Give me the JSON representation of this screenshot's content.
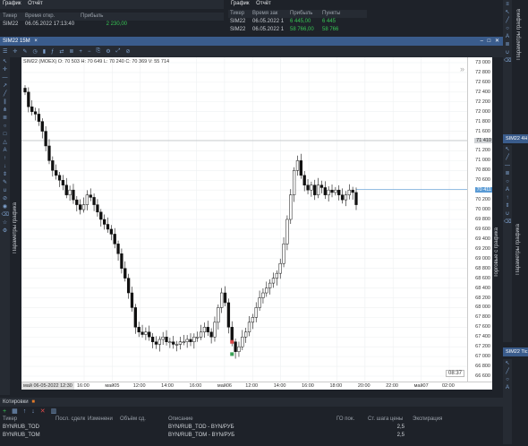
{
  "top_left": {
    "tabs": [
      "График",
      "Отчёт"
    ],
    "columns": [
      "Тикер",
      "Время откр.",
      "Прибыль"
    ],
    "row": {
      "ticker": "SIM22",
      "time": "06.05.2022 17:13:40",
      "profit": "2 230,00"
    }
  },
  "top_right": {
    "tabs": [
      "График",
      "Отчёт"
    ],
    "columns": [
      "Тикер",
      "Время зак",
      "Прибыль",
      "Пункты"
    ],
    "rows": [
      {
        "ticker": "SIM22",
        "time": "06.05.2022 1",
        "profit": "6 445,00",
        "points": "6 445"
      },
      {
        "ticker": "SIM22",
        "time": "06.05.2022 1",
        "profit": "58 766,00",
        "points": "58 766"
      }
    ]
  },
  "chart_window": {
    "title": "SIM22 15M",
    "close_glyph": "×",
    "ohlc": "SIM22 (MOEX)  O: 70 503  H: 70 649  L: 70 240  C: 70 369  V: 55 714",
    "timer": "08:37",
    "date_label": "май 06-05-2022 12:30"
  },
  "side_labels": {
    "left": "Параметры графика",
    "right_top": "Параметры графика",
    "right_mid": "Торговые с графика",
    "right_far": "Параметры графика"
  },
  "right_peek": {
    "title1": "SIM22 4H",
    "title2": "SIM22 Tic"
  },
  "bottom_panel": {
    "title": "Котировки",
    "columns": [
      "Тикер",
      "Посл. сделк",
      "Изменени",
      "Объём сд.",
      "Описание",
      "ГО пок.",
      "Ст. шага цены",
      "Экспирация"
    ],
    "rows": [
      {
        "ticker": "BYNRUB_TOD",
        "desc": "BYN/RUB_TOD - BYN/РУБ",
        "step": "2,5"
      },
      {
        "ticker": "BYNRUB_TOM",
        "desc": "BYN/RUB_TOM - BYN/РУБ",
        "step": "2,5"
      }
    ]
  },
  "chart_data": {
    "type": "candlestick",
    "title": "SIM22 (MOEX)",
    "xlabel": "",
    "ylabel": "",
    "ylim": [
      66600,
      73000
    ],
    "y_ticks": [
      "73 000",
      "72 800",
      "72 600",
      "72 400",
      "72 200",
      "72 000",
      "71 800",
      "71 600",
      "71 400",
      "71 200",
      "71 000",
      "70 800",
      "70 600",
      "70 400",
      "70 200",
      "70 000",
      "69 800",
      "69 600",
      "69 400",
      "69 200",
      "69 000",
      "68 800",
      "68 600",
      "68 400",
      "68 200",
      "68 000",
      "67 800",
      "67 600",
      "67 400",
      "67 200",
      "67 000",
      "66 800",
      "66 600"
    ],
    "highlight_labels": [
      "71 410",
      "70 411"
    ],
    "x_ticks": [
      "16:00",
      "май05",
      "12:00",
      "14:00",
      "16:00",
      "май06",
      "12:00",
      "14:00",
      "16:00",
      "18:00",
      "20:00",
      "22:00",
      "май07",
      "02:00"
    ],
    "closes": [
      72400,
      72100,
      72000,
      71950,
      71800,
      71600,
      71300,
      71000,
      70800,
      70700,
      70600,
      70500,
      70300,
      70400,
      70200,
      70100,
      70000,
      70100,
      70300,
      70250,
      70100,
      69950,
      69800,
      69700,
      69600,
      69500,
      69300,
      69100,
      68800,
      68600,
      68300,
      68000,
      67600,
      67500,
      67450,
      67500,
      67400,
      67300,
      67250,
      67350,
      67400,
      67300,
      67300,
      67250,
      67250,
      67300,
      67300,
      67350,
      67300,
      67400,
      67400,
      67500,
      67600,
      67500,
      67400,
      67700,
      68000,
      68300,
      68100,
      67600,
      67300,
      67100,
      67200,
      67400,
      67500,
      67700,
      67800,
      68000,
      68200,
      68300,
      68400,
      68500,
      68600,
      68700,
      68900,
      69300,
      69800,
      70300,
      70800,
      71000,
      70700,
      70500,
      70400,
      70500,
      70300,
      70500,
      70450,
      70300,
      70400,
      70350,
      70400,
      70300,
      70200,
      70300,
      70400,
      70350,
      70100
    ]
  },
  "colors": {
    "accent_title": "#3a5c8c",
    "profit_green": "#37c454",
    "candle": "#111111"
  }
}
